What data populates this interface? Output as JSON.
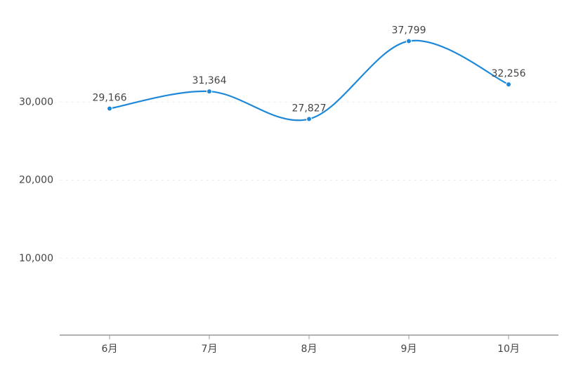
{
  "chart_data": {
    "type": "line",
    "categories": [
      "6月",
      "7月",
      "8月",
      "9月",
      "10月"
    ],
    "series": [
      {
        "color": "#1e88d8",
        "values": [
          29166,
          31364,
          27827,
          37799,
          32256
        ],
        "value_labels": [
          "29,166",
          "31,364",
          "27,827",
          "37,799",
          "32,256"
        ]
      }
    ],
    "ylim": [
      0,
      40000
    ],
    "yticks": [
      {
        "value": 10000,
        "label": "10,000"
      },
      {
        "value": 20000,
        "label": "20,000"
      },
      {
        "value": 30000,
        "label": "30,000"
      }
    ],
    "grid": true,
    "smooth": true
  }
}
